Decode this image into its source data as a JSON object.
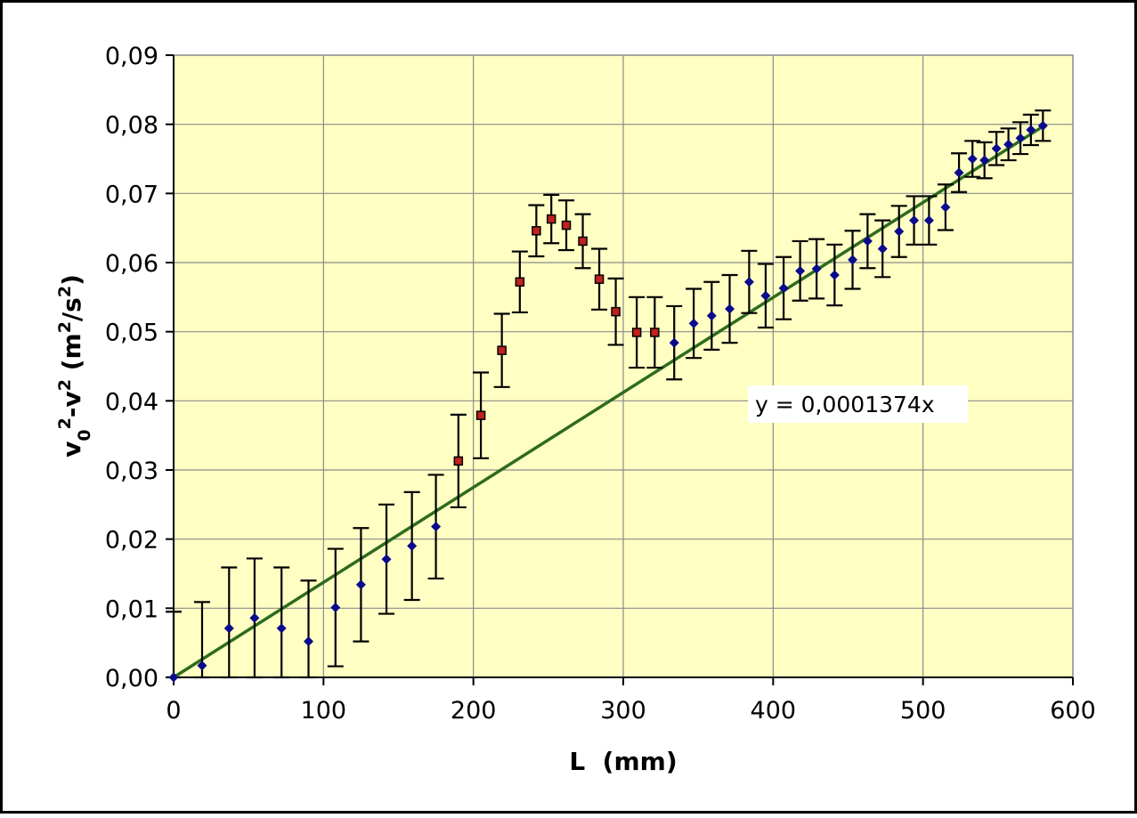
{
  "chart_data": {
    "type": "scatter",
    "xlabel": "L  (mm)",
    "ylabel": {
      "parts": [
        {
          "text": "v",
          "sub": false,
          "sup": false
        },
        {
          "text": "0",
          "sub": true,
          "sup": false
        },
        {
          "text": "2",
          "sub": false,
          "sup": true
        },
        {
          "text": "-v",
          "sub": false,
          "sup": false
        },
        {
          "text": "2",
          "sub": false,
          "sup": true
        },
        {
          "text": "  (m",
          "sub": false,
          "sup": false
        },
        {
          "text": "2",
          "sub": false,
          "sup": true
        },
        {
          "text": "/s",
          "sub": false,
          "sup": false
        },
        {
          "text": "2",
          "sub": false,
          "sup": true
        },
        {
          "text": ")",
          "sub": false,
          "sup": false
        }
      ]
    },
    "xlim": [
      0,
      600
    ],
    "ylim": [
      0,
      0.09
    ],
    "x_ticks": [
      "0",
      "100",
      "200",
      "300",
      "400",
      "500",
      "600"
    ],
    "x_tick_values": [
      0,
      100,
      200,
      300,
      400,
      500,
      600
    ],
    "y_ticks": [
      "0,00",
      "0,01",
      "0,02",
      "0,03",
      "0,04",
      "0,05",
      "0,06",
      "0,07",
      "0,08",
      "0,09"
    ],
    "y_tick_values": [
      0,
      0.01,
      0.02,
      0.03,
      0.04,
      0.05,
      0.06,
      0.07,
      0.08,
      0.09
    ],
    "grid": true,
    "plot_background": "#ffffc4",
    "grid_color": "#8a8a8a",
    "series": [
      {
        "marker": "diamond",
        "color": "#0a0a8c",
        "points": [
          {
            "x": 0,
            "y": 0.0,
            "err": 0.0095
          },
          {
            "x": 19,
            "y": 0.0017,
            "err": 0.0092
          },
          {
            "x": 37,
            "y": 0.0071,
            "err": 0.0088
          },
          {
            "x": 54,
            "y": 0.0086,
            "err": 0.0086
          },
          {
            "x": 72,
            "y": 0.0071,
            "err": 0.0088
          },
          {
            "x": 90,
            "y": 0.0052,
            "err": 0.0088
          },
          {
            "x": 108,
            "y": 0.0101,
            "err": 0.0085
          },
          {
            "x": 125,
            "y": 0.0134,
            "err": 0.0082
          },
          {
            "x": 142,
            "y": 0.0171,
            "err": 0.0079
          },
          {
            "x": 159,
            "y": 0.019,
            "err": 0.0078
          },
          {
            "x": 175,
            "y": 0.0218,
            "err": 0.0075
          },
          {
            "x": 334,
            "y": 0.0484,
            "err": 0.0053
          },
          {
            "x": 347,
            "y": 0.0512,
            "err": 0.005
          },
          {
            "x": 359,
            "y": 0.0523,
            "err": 0.0049
          },
          {
            "x": 371,
            "y": 0.0533,
            "err": 0.0049
          },
          {
            "x": 384,
            "y": 0.0572,
            "err": 0.0045
          },
          {
            "x": 395,
            "y": 0.0552,
            "err": 0.0046
          },
          {
            "x": 407,
            "y": 0.0563,
            "err": 0.0045
          },
          {
            "x": 418,
            "y": 0.0588,
            "err": 0.0043
          },
          {
            "x": 429,
            "y": 0.0591,
            "err": 0.0043
          },
          {
            "x": 441,
            "y": 0.0582,
            "err": 0.0044
          },
          {
            "x": 453,
            "y": 0.0604,
            "err": 0.0042
          },
          {
            "x": 463,
            "y": 0.0631,
            "err": 0.0039
          },
          {
            "x": 473,
            "y": 0.062,
            "err": 0.0041
          },
          {
            "x": 484,
            "y": 0.0645,
            "err": 0.0037
          },
          {
            "x": 494,
            "y": 0.0661,
            "err": 0.0035
          },
          {
            "x": 504,
            "y": 0.0661,
            "err": 0.0035
          },
          {
            "x": 515,
            "y": 0.068,
            "err": 0.0033
          },
          {
            "x": 524,
            "y": 0.073,
            "err": 0.0028
          },
          {
            "x": 533,
            "y": 0.075,
            "err": 0.0026
          },
          {
            "x": 541,
            "y": 0.0748,
            "err": 0.0026
          },
          {
            "x": 549,
            "y": 0.0765,
            "err": 0.0024
          },
          {
            "x": 557,
            "y": 0.0771,
            "err": 0.0023
          },
          {
            "x": 565,
            "y": 0.078,
            "err": 0.0023
          },
          {
            "x": 572,
            "y": 0.0792,
            "err": 0.0022
          },
          {
            "x": 580,
            "y": 0.0798,
            "err": 0.0022
          }
        ]
      },
      {
        "marker": "square",
        "color": "#c0221c",
        "points": [
          {
            "x": 190,
            "y": 0.0313,
            "err": 0.0067
          },
          {
            "x": 205,
            "y": 0.0379,
            "err": 0.0062
          },
          {
            "x": 219,
            "y": 0.0473,
            "err": 0.0053
          },
          {
            "x": 231,
            "y": 0.0572,
            "err": 0.0044
          },
          {
            "x": 242,
            "y": 0.0646,
            "err": 0.0037
          },
          {
            "x": 252,
            "y": 0.0663,
            "err": 0.0035
          },
          {
            "x": 262,
            "y": 0.0654,
            "err": 0.0036
          },
          {
            "x": 273,
            "y": 0.0631,
            "err": 0.0039
          },
          {
            "x": 284,
            "y": 0.0576,
            "err": 0.0044
          },
          {
            "x": 295,
            "y": 0.0529,
            "err": 0.0048
          },
          {
            "x": 309,
            "y": 0.0499,
            "err": 0.0051
          },
          {
            "x": 321,
            "y": 0.0499,
            "err": 0.0051
          }
        ]
      }
    ],
    "trendline": {
      "slope": 0.0001374,
      "x_range": [
        0,
        580
      ],
      "color": "#2e6b1e",
      "label": "y = 0,0001374x"
    }
  }
}
